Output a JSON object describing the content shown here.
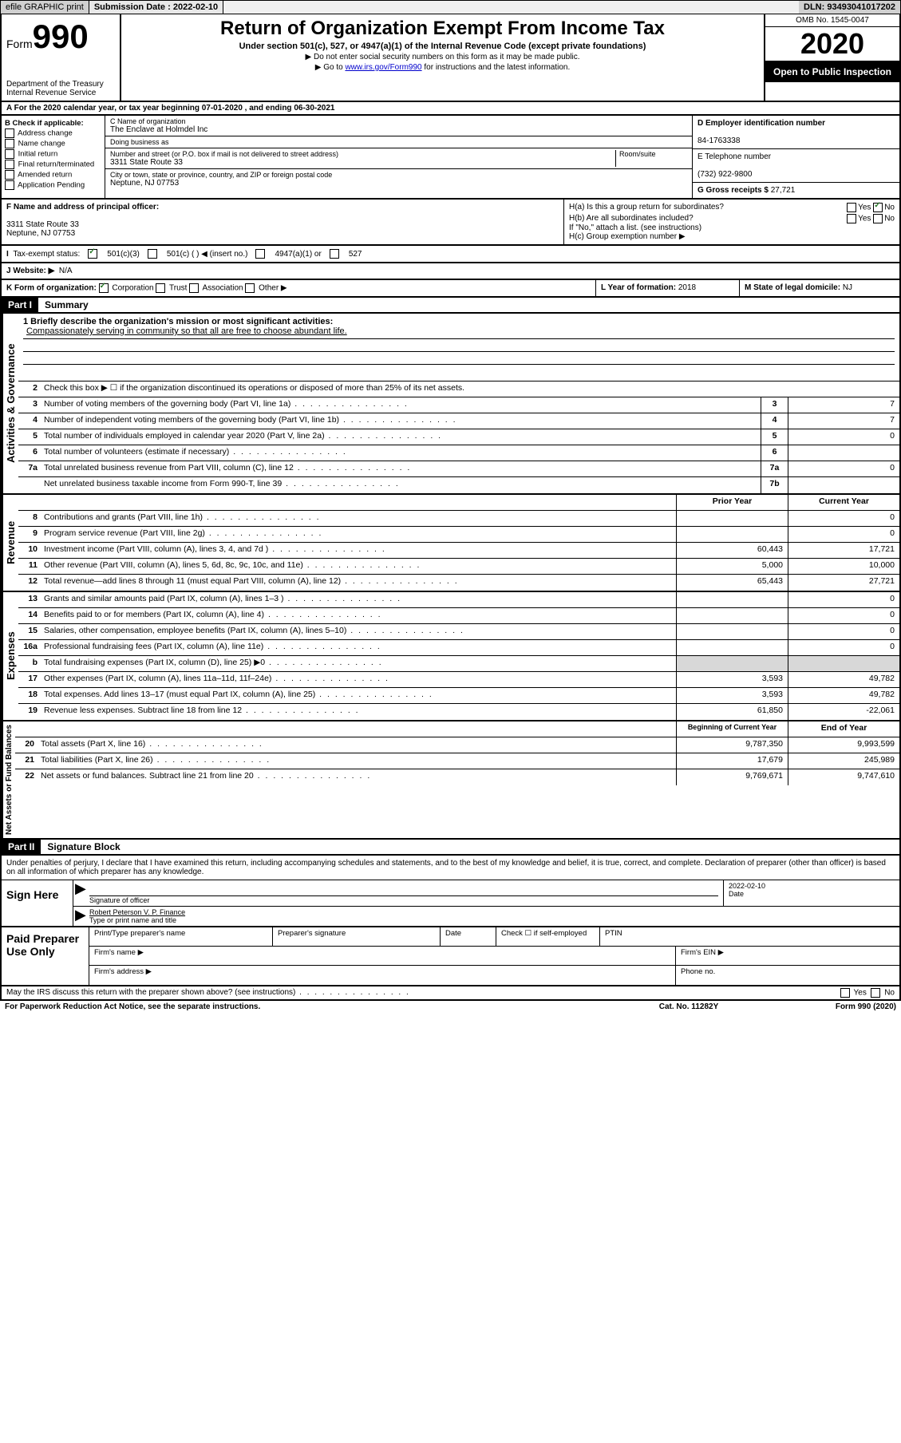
{
  "topbar": {
    "efile": "efile GRAPHIC print",
    "subdate_label": "Submission Date :",
    "subdate": "2022-02-10",
    "dln_label": "DLN:",
    "dln": "93493041017202"
  },
  "header": {
    "form_word": "Form",
    "form_num": "990",
    "dept1": "Department of the Treasury",
    "dept2": "Internal Revenue Service",
    "title": "Return of Organization Exempt From Income Tax",
    "subtitle": "Under section 501(c), 527, or 4947(a)(1) of the Internal Revenue Code (except private foundations)",
    "note1": "▶ Do not enter social security numbers on this form as it may be made public.",
    "note2_pre": "▶ Go to ",
    "note2_link": "www.irs.gov/Form990",
    "note2_post": " for instructions and the latest information.",
    "omb": "OMB No. 1545-0047",
    "year": "2020",
    "inspection": "Open to Public Inspection"
  },
  "rowA": "A For the 2020 calendar year, or tax year beginning 07-01-2020   , and ending 06-30-2021",
  "colB": {
    "hdr": "B Check if applicable:",
    "opts": [
      "Address change",
      "Name change",
      "Initial return",
      "Final return/terminated",
      "Amended return",
      "Application Pending"
    ]
  },
  "colC": {
    "name_label": "C Name of organization",
    "name": "The Enclave at Holmdel Inc",
    "dba_label": "Doing business as",
    "addr_label": "Number and street (or P.O. box if mail is not delivered to street address)",
    "room_label": "Room/suite",
    "addr": "3311 State Route 33",
    "city_label": "City or town, state or province, country, and ZIP or foreign postal code",
    "city": "Neptune, NJ  07753"
  },
  "colD": {
    "ein_label": "D Employer identification number",
    "ein": "84-1763338",
    "phone_label": "E Telephone number",
    "phone": "(732) 922-9800",
    "gross_label": "G Gross receipts $",
    "gross": "27,721"
  },
  "rowF": {
    "label": "F Name and address of principal officer:",
    "addr1": "3311 State Route 33",
    "addr2": "Neptune, NJ  07753"
  },
  "rowH": {
    "ha": "H(a)  Is this a group return for subordinates?",
    "hb": "H(b)  Are all subordinates included?",
    "hb_note": "If \"No,\" attach a list. (see instructions)",
    "hc": "H(c)  Group exemption number ▶",
    "yes": "Yes",
    "no": "No"
  },
  "exempt": {
    "label": "Tax-exempt status:",
    "o1": "501(c)(3)",
    "o2": "501(c) (  ) ◀ (insert no.)",
    "o3": "4947(a)(1) or",
    "o4": "527"
  },
  "rowJ": {
    "label": "J  Website: ▶",
    "val": "N/A"
  },
  "rowK": {
    "label": "K Form of organization:",
    "corp": "Corporation",
    "trust": "Trust",
    "assoc": "Association",
    "other": "Other ▶"
  },
  "rowL": {
    "label": "L Year of formation:",
    "val": "2018"
  },
  "rowM": {
    "label": "M State of legal domicile:",
    "val": "NJ"
  },
  "part1": {
    "hdr": "Part I",
    "title": "Summary"
  },
  "summary": {
    "l1_label": "1  Briefly describe the organization's mission or most significant activities:",
    "l1_text": "Compassionately serving in community so that all are free to choose abundant life.",
    "l2": "Check this box ▶ ☐  if the organization discontinued its operations or disposed of more than 25% of its net assets.",
    "rows_gov": [
      {
        "n": "3",
        "d": "Number of voting members of the governing body (Part VI, line 1a)",
        "box": "3",
        "v": "7"
      },
      {
        "n": "4",
        "d": "Number of independent voting members of the governing body (Part VI, line 1b)",
        "box": "4",
        "v": "7"
      },
      {
        "n": "5",
        "d": "Total number of individuals employed in calendar year 2020 (Part V, line 2a)",
        "box": "5",
        "v": "0"
      },
      {
        "n": "6",
        "d": "Total number of volunteers (estimate if necessary)",
        "box": "6",
        "v": ""
      },
      {
        "n": "7a",
        "d": "Total unrelated business revenue from Part VIII, column (C), line 12",
        "box": "7a",
        "v": "0"
      },
      {
        "n": "",
        "d": "Net unrelated business taxable income from Form 990-T, line 39",
        "box": "7b",
        "v": ""
      }
    ],
    "col_prior": "Prior Year",
    "col_current": "Current Year",
    "rev": [
      {
        "n": "8",
        "d": "Contributions and grants (Part VIII, line 1h)",
        "p": "",
        "c": "0"
      },
      {
        "n": "9",
        "d": "Program service revenue (Part VIII, line 2g)",
        "p": "",
        "c": "0"
      },
      {
        "n": "10",
        "d": "Investment income (Part VIII, column (A), lines 3, 4, and 7d )",
        "p": "60,443",
        "c": "17,721"
      },
      {
        "n": "11",
        "d": "Other revenue (Part VIII, column (A), lines 5, 6d, 8c, 9c, 10c, and 11e)",
        "p": "5,000",
        "c": "10,000"
      },
      {
        "n": "12",
        "d": "Total revenue—add lines 8 through 11 (must equal Part VIII, column (A), line 12)",
        "p": "65,443",
        "c": "27,721"
      }
    ],
    "exp": [
      {
        "n": "13",
        "d": "Grants and similar amounts paid (Part IX, column (A), lines 1–3 )",
        "p": "",
        "c": "0"
      },
      {
        "n": "14",
        "d": "Benefits paid to or for members (Part IX, column (A), line 4)",
        "p": "",
        "c": "0"
      },
      {
        "n": "15",
        "d": "Salaries, other compensation, employee benefits (Part IX, column (A), lines 5–10)",
        "p": "",
        "c": "0"
      },
      {
        "n": "16a",
        "d": "Professional fundraising fees (Part IX, column (A), line 11e)",
        "p": "",
        "c": "0"
      },
      {
        "n": "b",
        "d": "Total fundraising expenses (Part IX, column (D), line 25) ▶0",
        "p": "SHADE",
        "c": "SHADE"
      },
      {
        "n": "17",
        "d": "Other expenses (Part IX, column (A), lines 11a–11d, 11f–24e)",
        "p": "3,593",
        "c": "49,782"
      },
      {
        "n": "18",
        "d": "Total expenses. Add lines 13–17 (must equal Part IX, column (A), line 25)",
        "p": "3,593",
        "c": "49,782"
      },
      {
        "n": "19",
        "d": "Revenue less expenses. Subtract line 18 from line 12",
        "p": "61,850",
        "c": "-22,061"
      }
    ],
    "col_begin": "Beginning of Current Year",
    "col_end": "End of Year",
    "net": [
      {
        "n": "20",
        "d": "Total assets (Part X, line 16)",
        "p": "9,787,350",
        "c": "9,993,599"
      },
      {
        "n": "21",
        "d": "Total liabilities (Part X, line 26)",
        "p": "17,679",
        "c": "245,989"
      },
      {
        "n": "22",
        "d": "Net assets or fund balances. Subtract line 21 from line 20",
        "p": "9,769,671",
        "c": "9,747,610"
      }
    ]
  },
  "labels": {
    "gov": "Activities & Governance",
    "rev": "Revenue",
    "exp": "Expenses",
    "net": "Net Assets or Fund Balances"
  },
  "part2": {
    "hdr": "Part II",
    "title": "Signature Block",
    "decl": "Under penalties of perjury, I declare that I have examined this return, including accompanying schedules and statements, and to the best of my knowledge and belief, it is true, correct, and complete. Declaration of preparer (other than officer) is based on all information of which preparer has any knowledge."
  },
  "sign": {
    "here": "Sign Here",
    "sig_label": "Signature of officer",
    "date_label": "Date",
    "date": "2022-02-10",
    "name": "Robert Peterson  V. P. Finance",
    "name_label": "Type or print name and title"
  },
  "paid": {
    "label": "Paid Preparer Use Only",
    "c1": "Print/Type preparer's name",
    "c2": "Preparer's signature",
    "c3": "Date",
    "c4_pre": "Check ☐ if self-employed",
    "c5": "PTIN",
    "firm_name": "Firm's name   ▶",
    "firm_ein": "Firm's EIN ▶",
    "firm_addr": "Firm's address ▶",
    "phone": "Phone no."
  },
  "footer": {
    "discuss": "May the IRS discuss this return with the preparer shown above? (see instructions)",
    "yes": "Yes",
    "no": "No",
    "pra": "For Paperwork Reduction Act Notice, see the separate instructions.",
    "cat": "Cat. No. 11282Y",
    "form": "Form 990 (2020)"
  }
}
